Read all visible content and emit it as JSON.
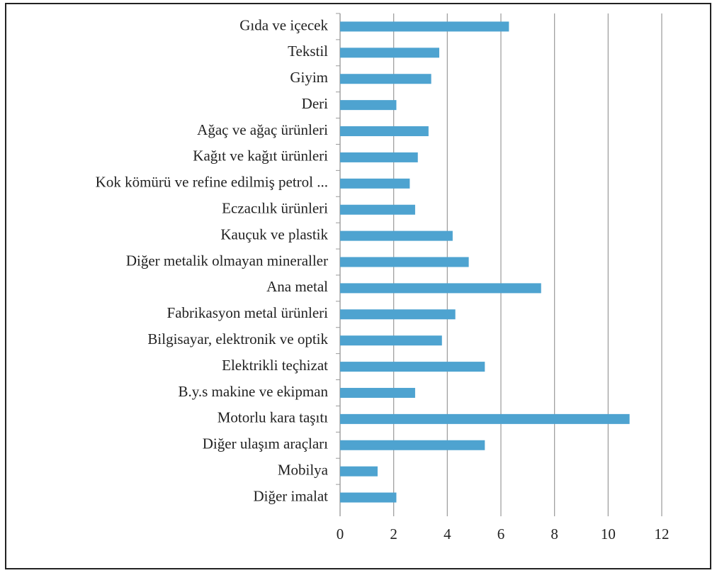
{
  "chart_data": {
    "type": "bar",
    "orientation": "horizontal",
    "categories": [
      "Gıda ve içecek",
      "Tekstil",
      "Giyim",
      "Deri",
      "Ağaç ve ağaç ürünleri",
      "Kağıt ve kağıt ürünleri",
      "Kok kömürü ve refine edilmiş petrol ...",
      "Eczacılık ürünleri",
      "Kauçuk ve plastik",
      "Diğer metalik olmayan mineraller",
      "Ana metal",
      "Fabrikasyon metal ürünleri",
      "Bilgisayar, elektronik ve optik",
      "Elektrikli teçhizat",
      "B.y.s makine ve ekipman",
      "Motorlu kara taşıtı",
      "Diğer ulaşım araçları",
      "Mobilya",
      "Diğer imalat"
    ],
    "values": [
      6.3,
      3.7,
      3.4,
      2.1,
      3.3,
      2.9,
      2.6,
      2.8,
      4.2,
      4.8,
      7.5,
      4.3,
      3.8,
      5.4,
      2.8,
      10.8,
      5.4,
      1.4,
      2.1
    ],
    "color": "#4ea3d0",
    "xlim": [
      0,
      12
    ],
    "xticks": [
      0,
      2,
      4,
      6,
      8,
      10,
      12
    ],
    "grid": true
  }
}
